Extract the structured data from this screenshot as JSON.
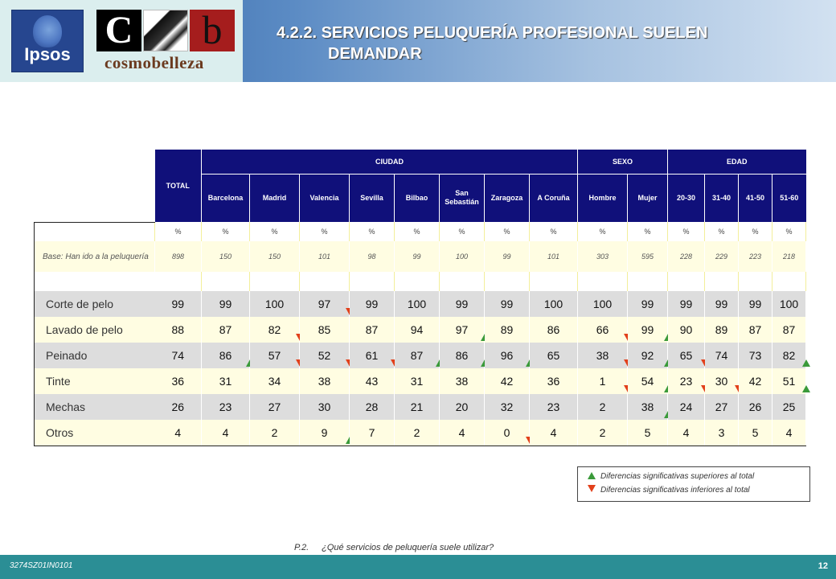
{
  "header": {
    "title_line1": "4.2.2. SERVICIOS PELUQUERÍA PROFESIONAL SUELEN",
    "title_line2": "DEMANDAR",
    "logo_ipsos": "Ipsos",
    "logo_c": "C",
    "logo_b": "b",
    "logo_cosmobelleza": "cosmobelleza"
  },
  "table": {
    "total_label": "TOTAL",
    "groups": {
      "ciudad": "CIUDAD",
      "sexo": "SEXO",
      "edad": "EDAD"
    },
    "columns": [
      "Barcelona",
      "Madrid",
      "Valencia",
      "Sevilla",
      "Bilbao",
      "San Sebastián",
      "Zaragoza",
      "A Coruña",
      "Hombre",
      "Mujer",
      "20-30",
      "31-40",
      "41-50",
      "51-60"
    ],
    "percent_symbol": "%",
    "base_label": "Base: Han ido a la peluquería",
    "base_values": [
      "898",
      "150",
      "150",
      "101",
      "98",
      "99",
      "100",
      "99",
      "101",
      "303",
      "595",
      "228",
      "229",
      "223",
      "218"
    ],
    "rows": [
      {
        "label": "Corte de pelo",
        "values": [
          "99",
          "99",
          "100",
          "97",
          "99",
          "100",
          "99",
          "99",
          "100",
          "100",
          "99",
          "99",
          "99",
          "99",
          "100"
        ],
        "marks": [
          "",
          "",
          "",
          "down",
          "",
          "",
          "",
          "",
          "",
          "",
          "",
          "",
          "",
          "",
          ""
        ]
      },
      {
        "label": "Lavado de pelo",
        "values": [
          "88",
          "87",
          "82",
          "85",
          "87",
          "94",
          "97",
          "89",
          "86",
          "66",
          "99",
          "90",
          "89",
          "87",
          "87"
        ],
        "marks": [
          "",
          "",
          "down",
          "",
          "",
          "",
          "up",
          "",
          "",
          "down",
          "up",
          "",
          "",
          "",
          ""
        ]
      },
      {
        "label": "Peinado",
        "values": [
          "74",
          "86",
          "57",
          "52",
          "61",
          "87",
          "86",
          "96",
          "65",
          "38",
          "92",
          "65",
          "74",
          "73",
          "82"
        ],
        "marks": [
          "",
          "up",
          "down",
          "down",
          "down",
          "up",
          "up",
          "up",
          "",
          "down",
          "up",
          "down",
          "",
          "",
          "up"
        ]
      },
      {
        "label": "Tinte",
        "values": [
          "36",
          "31",
          "34",
          "38",
          "43",
          "31",
          "38",
          "42",
          "36",
          "1",
          "54",
          "23",
          "30",
          "42",
          "51"
        ],
        "marks": [
          "",
          "",
          "",
          "",
          "",
          "",
          "",
          "",
          "",
          "down",
          "up",
          "down",
          "down",
          "",
          "up"
        ]
      },
      {
        "label": "Mechas",
        "values": [
          "26",
          "23",
          "27",
          "30",
          "28",
          "21",
          "20",
          "32",
          "23",
          "2",
          "38",
          "24",
          "27",
          "26",
          "25"
        ],
        "marks": [
          "",
          "",
          "",
          "",
          "",
          "",
          "",
          "",
          "",
          "",
          "up",
          "",
          "",
          "",
          ""
        ]
      },
      {
        "label": "Otros",
        "values": [
          "4",
          "4",
          "2",
          "9",
          "7",
          "2",
          "4",
          "0",
          "4",
          "2",
          "5",
          "4",
          "3",
          "5",
          "4"
        ],
        "marks": [
          "",
          "",
          "",
          "up",
          "",
          "",
          "",
          "down",
          "",
          "",
          "",
          "",
          "",
          "",
          ""
        ]
      }
    ]
  },
  "legend": {
    "up": "Diferencias significativas superiores al total",
    "down": "Diferencias significativas inferiores al total"
  },
  "question": {
    "code": "P.2.",
    "text": "¿Qué servicios de peluquería suele utilizar?"
  },
  "footer": {
    "ref": "3274SZ01IN0101",
    "page": "12"
  },
  "colors": {
    "header_blue": "#10107a",
    "row_grey": "#dddddd",
    "row_yellow": "#fffde2",
    "footer_teal": "#2b8e95",
    "up_mark": "#3a9a3a",
    "down_mark": "#e2401b"
  }
}
